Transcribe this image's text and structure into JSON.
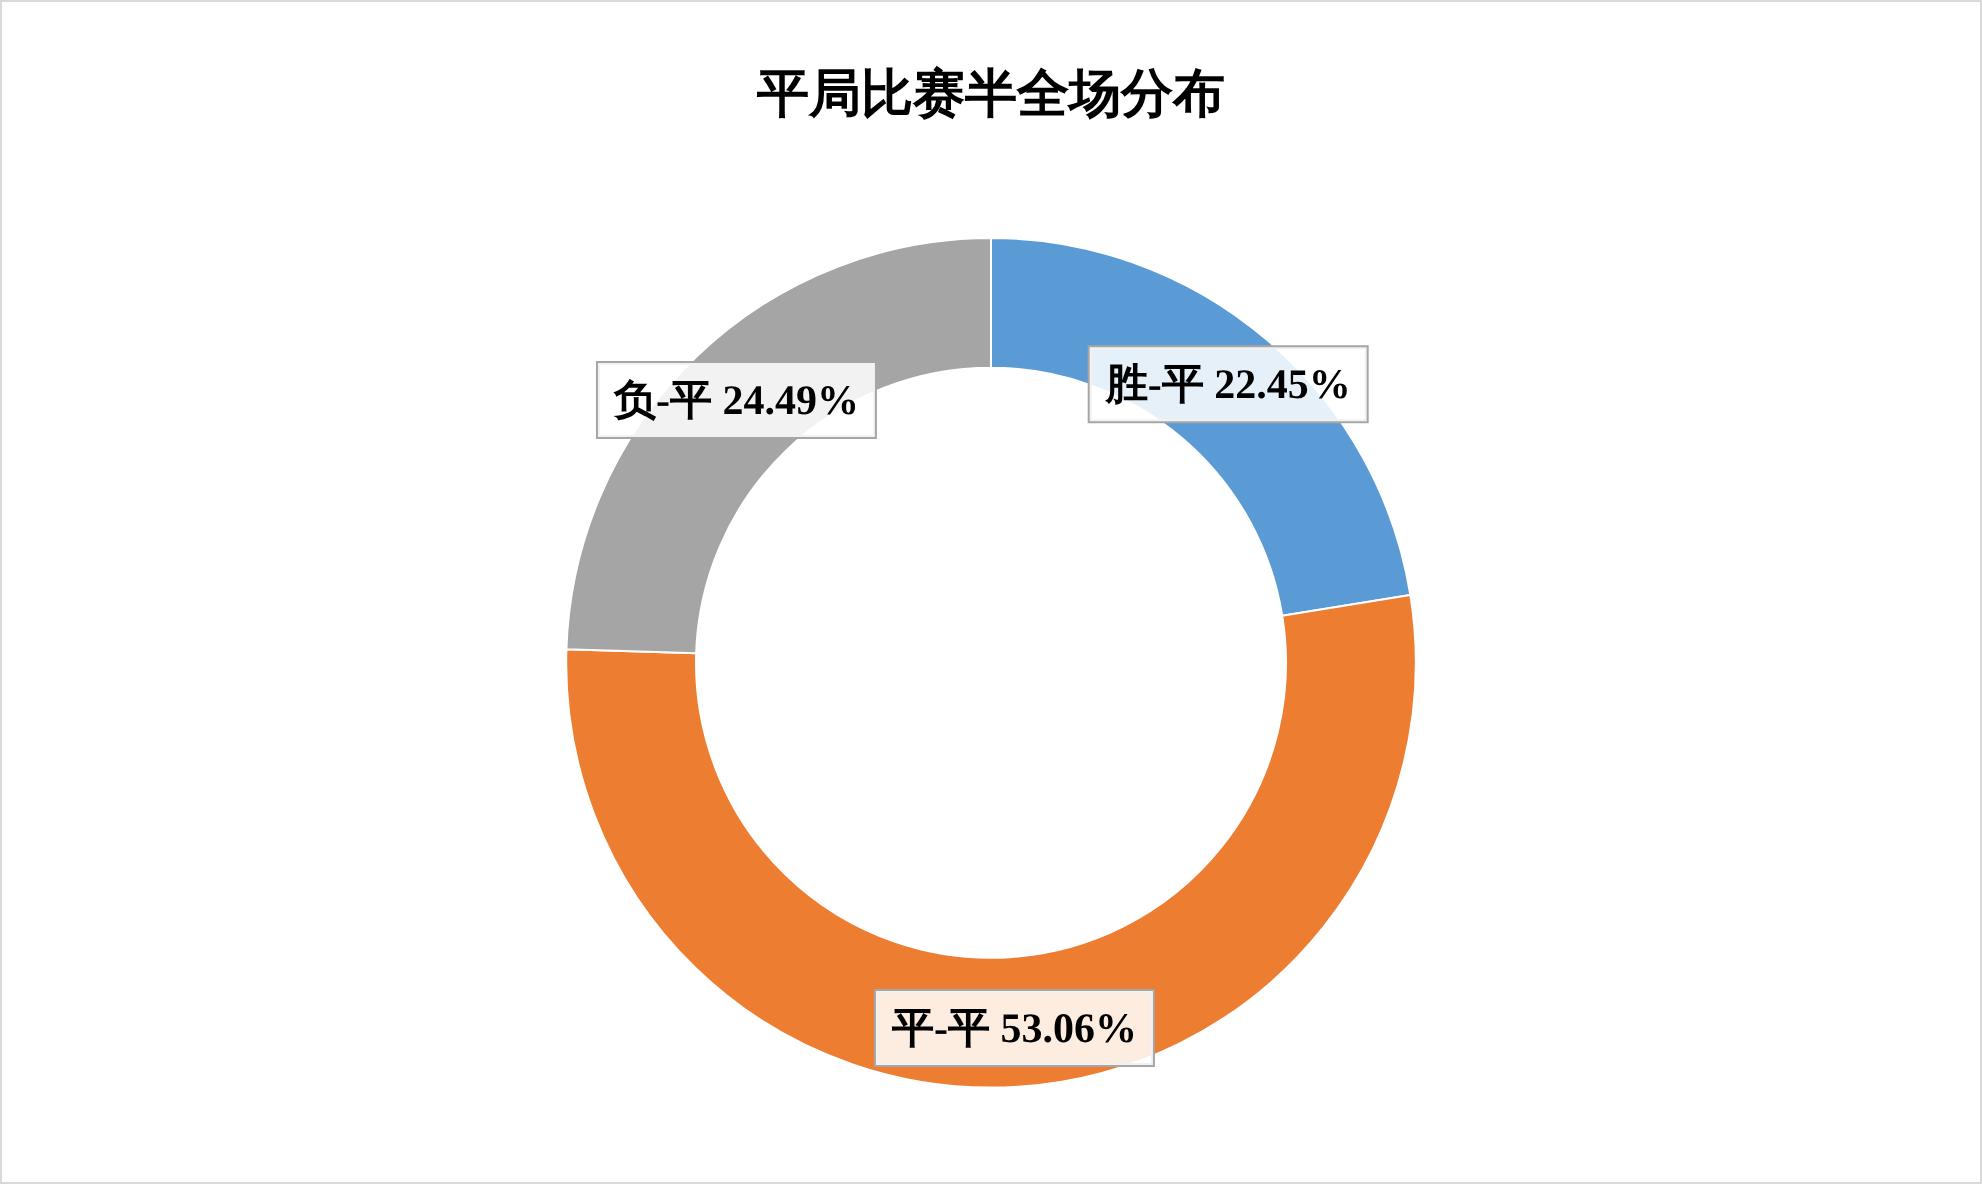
{
  "chart_data": {
    "type": "donut",
    "title": "平局比赛半全场分布",
    "categories": [
      "胜-平",
      "平-平",
      "负-平"
    ],
    "values": [
      22.45,
      53.06,
      24.49
    ],
    "value_labels": [
      "22.45%",
      "53.06%",
      "24.49%"
    ],
    "colors": [
      "#5b9bd5",
      "#ed7d31",
      "#a5a5a5"
    ],
    "legend": false
  }
}
